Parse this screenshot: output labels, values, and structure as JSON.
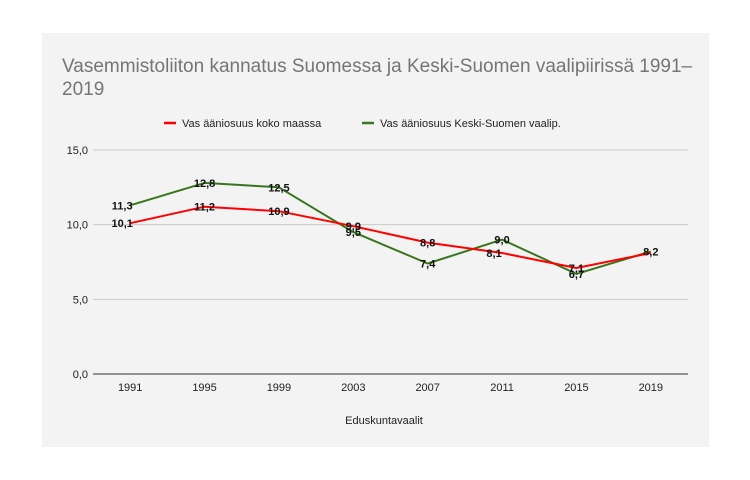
{
  "chart_data": {
    "type": "line",
    "title": "Vasemmistoliiton kannatus Suomessa ja Keski-Suomen vaalipiirissä 1991–2019",
    "xlabel": "Eduskuntavaalit",
    "ylabel": "",
    "categories": [
      "1991",
      "1995",
      "1999",
      "2003",
      "2007",
      "2011",
      "2015",
      "2019"
    ],
    "ylim": [
      0,
      15
    ],
    "yticks": [
      0,
      5,
      10,
      15
    ],
    "ytick_labels": [
      "0,0",
      "5,0",
      "10,0",
      "15,0"
    ],
    "grid": true,
    "legend_position": "top",
    "series": [
      {
        "name": "Vas ääniosuus koko maassa",
        "color": "#ff0000",
        "values": [
          10.1,
          11.2,
          10.9,
          9.9,
          8.8,
          8.1,
          7.1,
          8.1
        ],
        "labels": [
          "10,1",
          "11,2",
          "10,9",
          "9,9",
          "8,8",
          "8,1",
          "7,1",
          ""
        ]
      },
      {
        "name": "Vas ääniosuus Keski-Suomen vaalip.",
        "color": "#38761d",
        "values": [
          11.3,
          12.8,
          12.5,
          9.5,
          7.4,
          9.0,
          6.7,
          8.2
        ],
        "labels": [
          "11,3",
          "12,8",
          "12,5",
          "9,5",
          "7,4",
          "9,0",
          "6,7",
          "8,2"
        ]
      }
    ]
  }
}
